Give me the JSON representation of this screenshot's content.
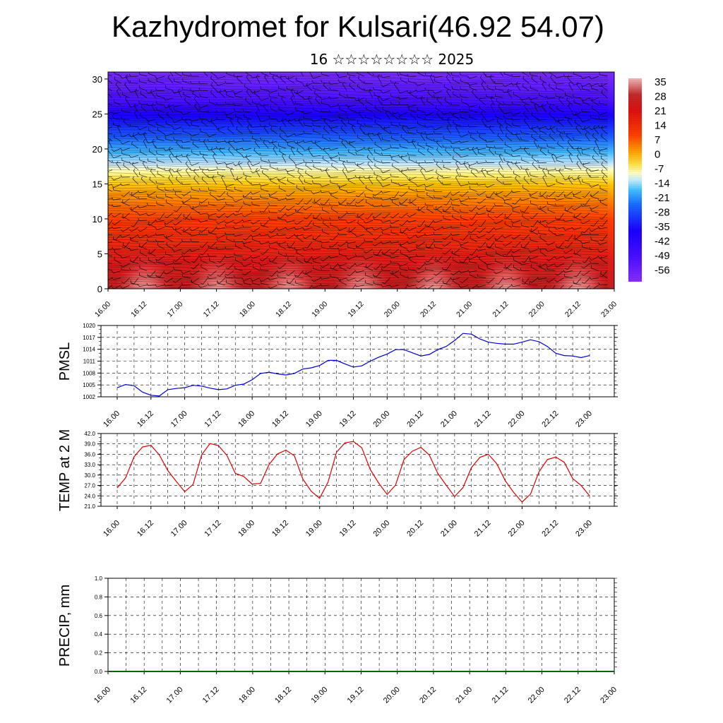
{
  "title": "Kazhydromet for Kulsari(46.92 54.07)",
  "subtitle": "16 ☆☆☆☆☆☆☆☆ 2025",
  "colors": {
    "pmsl_line": "#0000cc",
    "temp_line": "#dd0000",
    "precip_line": "#006600"
  },
  "time_ticks": [
    "16.00",
    "16.12",
    "17.00",
    "17.12",
    "18.00",
    "18.12",
    "19.00",
    "19.12",
    "20.00",
    "20.12",
    "21.00",
    "21.12",
    "22.00",
    "22.12",
    "23.00"
  ],
  "chart_data": [
    {
      "type": "heatmap",
      "name": "cross-section",
      "y_ticks": [
        "0",
        "5",
        "10",
        "15",
        "20",
        "25",
        "30"
      ],
      "ylim": [
        0,
        31
      ],
      "colorbar": {
        "labels": [
          "35",
          "28",
          "21",
          "14",
          "7",
          "0",
          "-7",
          "-14",
          "-21",
          "-28",
          "-35",
          "-42",
          "-49",
          "-56"
        ],
        "range": [
          -60,
          38
        ]
      },
      "overlay": "wind barbs"
    },
    {
      "type": "line",
      "ylabel": "PMSL",
      "y_ticks": [
        "1002",
        "1005",
        "1008",
        "1011",
        "1014",
        "1017",
        "1020"
      ],
      "ylim": [
        1002,
        1020
      ],
      "x_step_hours": 3,
      "values": [
        1004.3,
        1005.1,
        1004.8,
        1003.2,
        1002.4,
        1002.2,
        1003.8,
        1004.1,
        1004.3,
        1004.9,
        1004.7,
        1004.2,
        1003.8,
        1004.0,
        1004.9,
        1005.2,
        1006.3,
        1007.9,
        1008.2,
        1007.8,
        1007.5,
        1007.9,
        1009.0,
        1009.3,
        1009.9,
        1011.2,
        1011.2,
        1010.3,
        1009.5,
        1009.8,
        1011.0,
        1012.0,
        1012.8,
        1013.9,
        1013.9,
        1013.1,
        1012.3,
        1012.7,
        1013.9,
        1014.7,
        1016.2,
        1018.0,
        1017.8,
        1016.6,
        1015.8,
        1015.5,
        1015.3,
        1015.3,
        1015.8,
        1016.4,
        1015.9,
        1014.7,
        1013.0,
        1012.4,
        1012.3,
        1011.9,
        1012.4
      ]
    },
    {
      "type": "line",
      "ylabel": "TEMP at 2 M",
      "y_ticks": [
        "21.0",
        "24.0",
        "27.0",
        "30.0",
        "33.0",
        "36.0",
        "39.0",
        "42.0"
      ],
      "ylim": [
        21,
        42
      ],
      "x_step_hours": 3,
      "values": [
        26.3,
        29.2,
        35.3,
        38.1,
        38.6,
        35.8,
        31.3,
        28.2,
        25.2,
        27.3,
        35.8,
        39.1,
        38.5,
        35.7,
        30.5,
        29.6,
        27.4,
        27.6,
        33.0,
        36.1,
        37.2,
        35.6,
        28.9,
        25.3,
        23.3,
        28.0,
        36.6,
        39.3,
        39.7,
        37.9,
        31.6,
        27.7,
        24.4,
        27.1,
        34.5,
        36.9,
        38.0,
        35.8,
        30.5,
        27.1,
        23.8,
        26.4,
        32.2,
        35.1,
        36.0,
        33.3,
        28.4,
        25.0,
        22.2,
        24.5,
        30.9,
        34.5,
        35.2,
        33.7,
        29.0,
        27.0,
        24.0
      ]
    },
    {
      "type": "line",
      "ylabel": "PRECIP, mm",
      "y_ticks": [
        "0.0",
        "0.2",
        "0.4",
        "0.6",
        "0.8",
        "1.0"
      ],
      "ylim": [
        0,
        1
      ],
      "values": [
        0,
        0
      ]
    }
  ]
}
